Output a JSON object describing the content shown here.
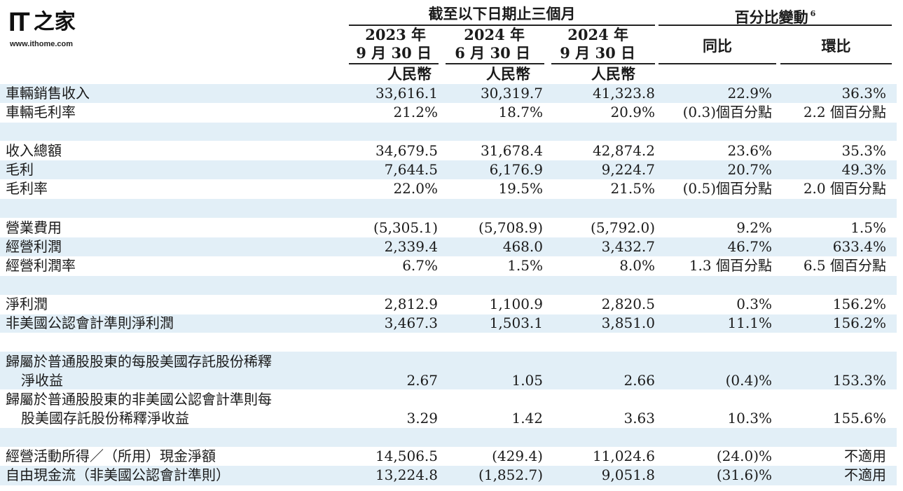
{
  "logo": {
    "mark": "IT",
    "mark_cn": "之家",
    "url": "www.ithome.com"
  },
  "header": {
    "period_group": "截至以下日期止三個月",
    "change_group": "百分比變動",
    "change_note": "6",
    "columns": [
      {
        "year": "2023 年",
        "date": "9 月 30 日",
        "currency": "人民幣"
      },
      {
        "year": "2024 年",
        "date": "6 月 30 日",
        "currency": "人民幣"
      },
      {
        "year": "2024 年",
        "date": "9 月 30 日",
        "currency": "人民幣"
      }
    ],
    "yoy": "同比",
    "qoq": "環比"
  },
  "rows": [
    {
      "label": "車輛銷售收入",
      "v": [
        "33,616.1",
        "30,319.7",
        "41,323.8",
        "22.9%",
        "36.3%"
      ]
    },
    {
      "label": "車輛毛利率",
      "v": [
        "21.2%",
        "18.7%",
        "20.9%",
        "(0.3)個百分點",
        "2.2 個百分點"
      ]
    },
    {
      "label": "收入總額",
      "v": [
        "34,679.5",
        "31,678.4",
        "42,874.2",
        "23.6%",
        "35.3%"
      ]
    },
    {
      "label": "毛利",
      "v": [
        "7,644.5",
        "6,176.9",
        "9,224.7",
        "20.7%",
        "49.3%"
      ]
    },
    {
      "label": "毛利率",
      "v": [
        "22.0%",
        "19.5%",
        "21.5%",
        "(0.5)個百分點",
        "2.0 個百分點"
      ]
    },
    {
      "label": "營業費用",
      "v": [
        "(5,305.1)",
        "(5,708.9)",
        "(5,792.0)",
        "9.2%",
        "1.5%"
      ]
    },
    {
      "label": "經營利潤",
      "v": [
        "2,339.4",
        "468.0",
        "3,432.7",
        "46.7%",
        "633.4%"
      ]
    },
    {
      "label": "經營利潤率",
      "v": [
        "6.7%",
        "1.5%",
        "8.0%",
        "1.3 個百分點",
        "6.5 個百分點"
      ]
    },
    {
      "label": "淨利潤",
      "v": [
        "2,812.9",
        "1,100.9",
        "2,820.5",
        "0.3%",
        "156.2%"
      ]
    },
    {
      "label": "非美國公認會計準則淨利潤",
      "v": [
        "3,467.3",
        "1,503.1",
        "3,851.0",
        "11.1%",
        "156.2%"
      ]
    },
    {
      "label": "歸屬於普通股股東的每股美國存託股份稀釋",
      "label2": "淨收益",
      "v": [
        "2.67",
        "1.05",
        "2.66",
        "(0.4)%",
        "153.3%"
      ]
    },
    {
      "label": "歸屬於普通股股東的非美國公認會計準則每",
      "label2": "股美國存託股份稀釋淨收益",
      "v": [
        "3.29",
        "1.42",
        "3.63",
        "10.3%",
        "155.6%"
      ]
    },
    {
      "label": "經營活動所得／（所用）現金淨額",
      "v": [
        "14,506.5",
        "(429.4)",
        "11,024.6",
        "(24.0)%",
        "不適用"
      ]
    },
    {
      "label": "自由現金流（非美國公認會計準則）",
      "v": [
        "13,224.8",
        "(1,852.7)",
        "9,051.8",
        "(31.6)%",
        "不適用"
      ]
    }
  ],
  "colors": {
    "band": "#e2eff7",
    "text": "#1a1a1a"
  }
}
